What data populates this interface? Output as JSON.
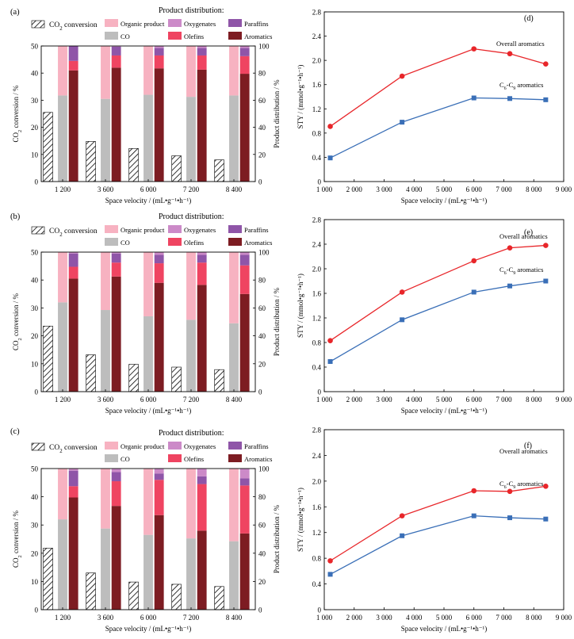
{
  "figure": {
    "panels": [
      "(a)",
      "(b)",
      "(c)",
      "(d)",
      "(e)",
      "(f)"
    ]
  },
  "legend": {
    "co2_conversion": "CO2 conversion",
    "product_distribution_title": "Product distribution:",
    "items": [
      "Organic product",
      "Oxygenates",
      "Paraffins",
      "CO",
      "Olefins",
      "Aromatics"
    ]
  },
  "colors": {
    "organic_product": "#f7b2c1",
    "oxygenates": "#cc8ac8",
    "paraffins": "#8f55a8",
    "co": "#bdbdbd",
    "olefins": "#ef4461",
    "aromatics": "#7d1c22",
    "overall_aromatics": "#e8262a",
    "c6c9_aromatics": "#3a6fb7",
    "legend_text_red": "#c81e3a"
  },
  "chart_data": [
    {
      "id": "a",
      "panel_label": "(a)",
      "type": "bar",
      "categories": [
        "1 200",
        "3 600",
        "6 000",
        "7 200",
        "8 400"
      ],
      "xlabel": "Space velocity / (mL•g⁻¹•h⁻¹)",
      "ylabel_left": "CO2 conversion / %",
      "ylabel_right": "Product distribution / %",
      "ylim_left": [
        0,
        50
      ],
      "ylim_right": [
        0,
        100
      ],
      "yticks_left": [
        "0",
        "10",
        "20",
        "30",
        "40",
        "50"
      ],
      "yticks_right": [
        "0",
        "20",
        "40",
        "60",
        "80",
        "100"
      ],
      "co2_conversion": [
        25.5,
        14.8,
        12.2,
        9.5,
        8.0
      ],
      "co": [
        63.5,
        61.0,
        64.0,
        62.5,
        63.5
      ],
      "organic_product": [
        36.5,
        39.0,
        36.0,
        37.5,
        36.5
      ],
      "aromatics": [
        82.0,
        84.0,
        83.5,
        82.5,
        79.5
      ],
      "olefins": [
        7.0,
        9.0,
        9.5,
        10.5,
        13.0
      ],
      "paraffins": [
        11.0,
        6.5,
        5.5,
        5.5,
        6.0
      ],
      "oxygenates": [
        0.0,
        0.5,
        1.5,
        1.5,
        1.5
      ]
    },
    {
      "id": "b",
      "panel_label": "(b)",
      "type": "bar",
      "categories": [
        "1 200",
        "3 600",
        "6 000",
        "7 200",
        "8 400"
      ],
      "xlabel": "Space velocity / (mL•g⁻¹•h⁻¹)",
      "ylabel_left": "CO2 conversion / %",
      "ylabel_right": "Product distribution / %",
      "ylim_left": [
        0,
        50
      ],
      "ylim_right": [
        0,
        100
      ],
      "yticks_left": [
        "0",
        "10",
        "20",
        "30",
        "40",
        "50"
      ],
      "yticks_right": [
        "0",
        "20",
        "40",
        "60",
        "80",
        "100"
      ],
      "co2_conversion": [
        23.5,
        13.2,
        9.8,
        8.8,
        7.9
      ],
      "co": [
        64.0,
        58.5,
        54.0,
        51.5,
        49.0
      ],
      "organic_product": [
        36.0,
        41.5,
        46.0,
        48.5,
        51.0
      ],
      "aromatics": [
        81.0,
        82.5,
        78.0,
        76.5,
        70.0
      ],
      "olefins": [
        8.5,
        10.0,
        14.0,
        16.0,
        20.5
      ],
      "paraffins": [
        9.5,
        6.5,
        6.0,
        5.5,
        7.5
      ],
      "oxygenates": [
        1.0,
        1.0,
        2.0,
        2.0,
        2.0
      ]
    },
    {
      "id": "c",
      "panel_label": "(c)",
      "type": "bar",
      "categories": [
        "1 200",
        "3 600",
        "6 000",
        "7 200",
        "8 400"
      ],
      "xlabel": "Space velocity / (mL•g⁻¹•h⁻¹)",
      "ylabel_left": "CO2 conversion / %",
      "ylabel_right": "Product distribution / %",
      "ylim_left": [
        0,
        50
      ],
      "ylim_right": [
        0,
        100
      ],
      "yticks_left": [
        "0",
        "10",
        "20",
        "30",
        "40",
        "50"
      ],
      "yticks_right": [
        "0",
        "20",
        "40",
        "60",
        "80",
        "100"
      ],
      "co2_conversion": [
        21.8,
        13.0,
        9.8,
        9.0,
        8.2
      ],
      "co": [
        64.0,
        57.5,
        53.0,
        50.5,
        48.5
      ],
      "organic_product": [
        36.0,
        42.5,
        47.0,
        49.5,
        51.5
      ],
      "aromatics": [
        79.5,
        73.5,
        67.0,
        56.0,
        54.0
      ],
      "olefins": [
        8.0,
        17.5,
        25.0,
        33.0,
        34.0
      ],
      "paraffins": [
        11.0,
        6.5,
        4.5,
        5.5,
        5.0
      ],
      "oxygenates": [
        1.5,
        2.5,
        3.5,
        5.5,
        7.0
      ]
    },
    {
      "id": "d",
      "panel_label": "(d)",
      "type": "line",
      "xlabel": "Space velocity / (mL•g⁻¹•h⁻¹)",
      "ylabel": "STY / (mmol•g⁻¹•h⁻¹)",
      "xlim": [
        1000,
        9000
      ],
      "ylim": [
        0,
        2.8
      ],
      "xticks": [
        "1 000",
        "2 000",
        "3 000",
        "4 000",
        "5 000",
        "6 000",
        "7 000",
        "8 000",
        "9 000"
      ],
      "yticks": [
        "0",
        "0.4",
        "0.8",
        "1.2",
        "1.6",
        "2.0",
        "2.4",
        "2.8"
      ],
      "x": [
        1200,
        3600,
        6000,
        7200,
        8400
      ],
      "series": [
        {
          "name": "Overall aromatics",
          "values": [
            0.91,
            1.74,
            2.19,
            2.11,
            1.94
          ]
        },
        {
          "name": "C6-C9 aromatics",
          "values": [
            0.39,
            0.98,
            1.38,
            1.37,
            1.35
          ]
        }
      ]
    },
    {
      "id": "e",
      "panel_label": "(e)",
      "type": "line",
      "xlabel": "Space velocity / (mL•g⁻¹•h⁻¹)",
      "ylabel": "STY / (mmol•g⁻¹•h⁻¹)",
      "xlim": [
        1000,
        9000
      ],
      "ylim": [
        0,
        2.8
      ],
      "xticks": [
        "1 000",
        "2 000",
        "3 000",
        "4 000",
        "5 000",
        "6 000",
        "7 000",
        "8 000",
        "9 000"
      ],
      "yticks": [
        "0",
        "0.4",
        "0.8",
        "1.2",
        "1.6",
        "2.0",
        "2.4",
        "2.8"
      ],
      "x": [
        1200,
        3600,
        6000,
        7200,
        8400
      ],
      "series": [
        {
          "name": "Overall aromatics",
          "values": [
            0.83,
            1.62,
            2.13,
            2.34,
            2.38
          ]
        },
        {
          "name": "C6-C9 aromatics",
          "values": [
            0.49,
            1.17,
            1.62,
            1.72,
            1.8
          ]
        }
      ]
    },
    {
      "id": "f",
      "panel_label": "(f)",
      "type": "line",
      "xlabel": "Space velocity / (mL•g⁻¹•h⁻¹)",
      "ylabel": "STY / (mmol•g⁻¹•h⁻¹)",
      "xlim": [
        1000,
        9000
      ],
      "ylim": [
        0,
        2.8
      ],
      "xticks": [
        "1 000",
        "2 000",
        "3 000",
        "4 000",
        "5 000",
        "6 000",
        "7 000",
        "8 000",
        "9 000"
      ],
      "yticks": [
        "0",
        "0.4",
        "0.8",
        "1.2",
        "1.6",
        "2.0",
        "2.4",
        "2.8"
      ],
      "x": [
        1200,
        3600,
        6000,
        7200,
        8400
      ],
      "series": [
        {
          "name": "Overall aromatics",
          "values": [
            0.76,
            1.46,
            1.85,
            1.84,
            1.92
          ]
        },
        {
          "name": "C6-C9 aromatics",
          "values": [
            0.55,
            1.15,
            1.46,
            1.43,
            1.41
          ]
        }
      ]
    }
  ]
}
